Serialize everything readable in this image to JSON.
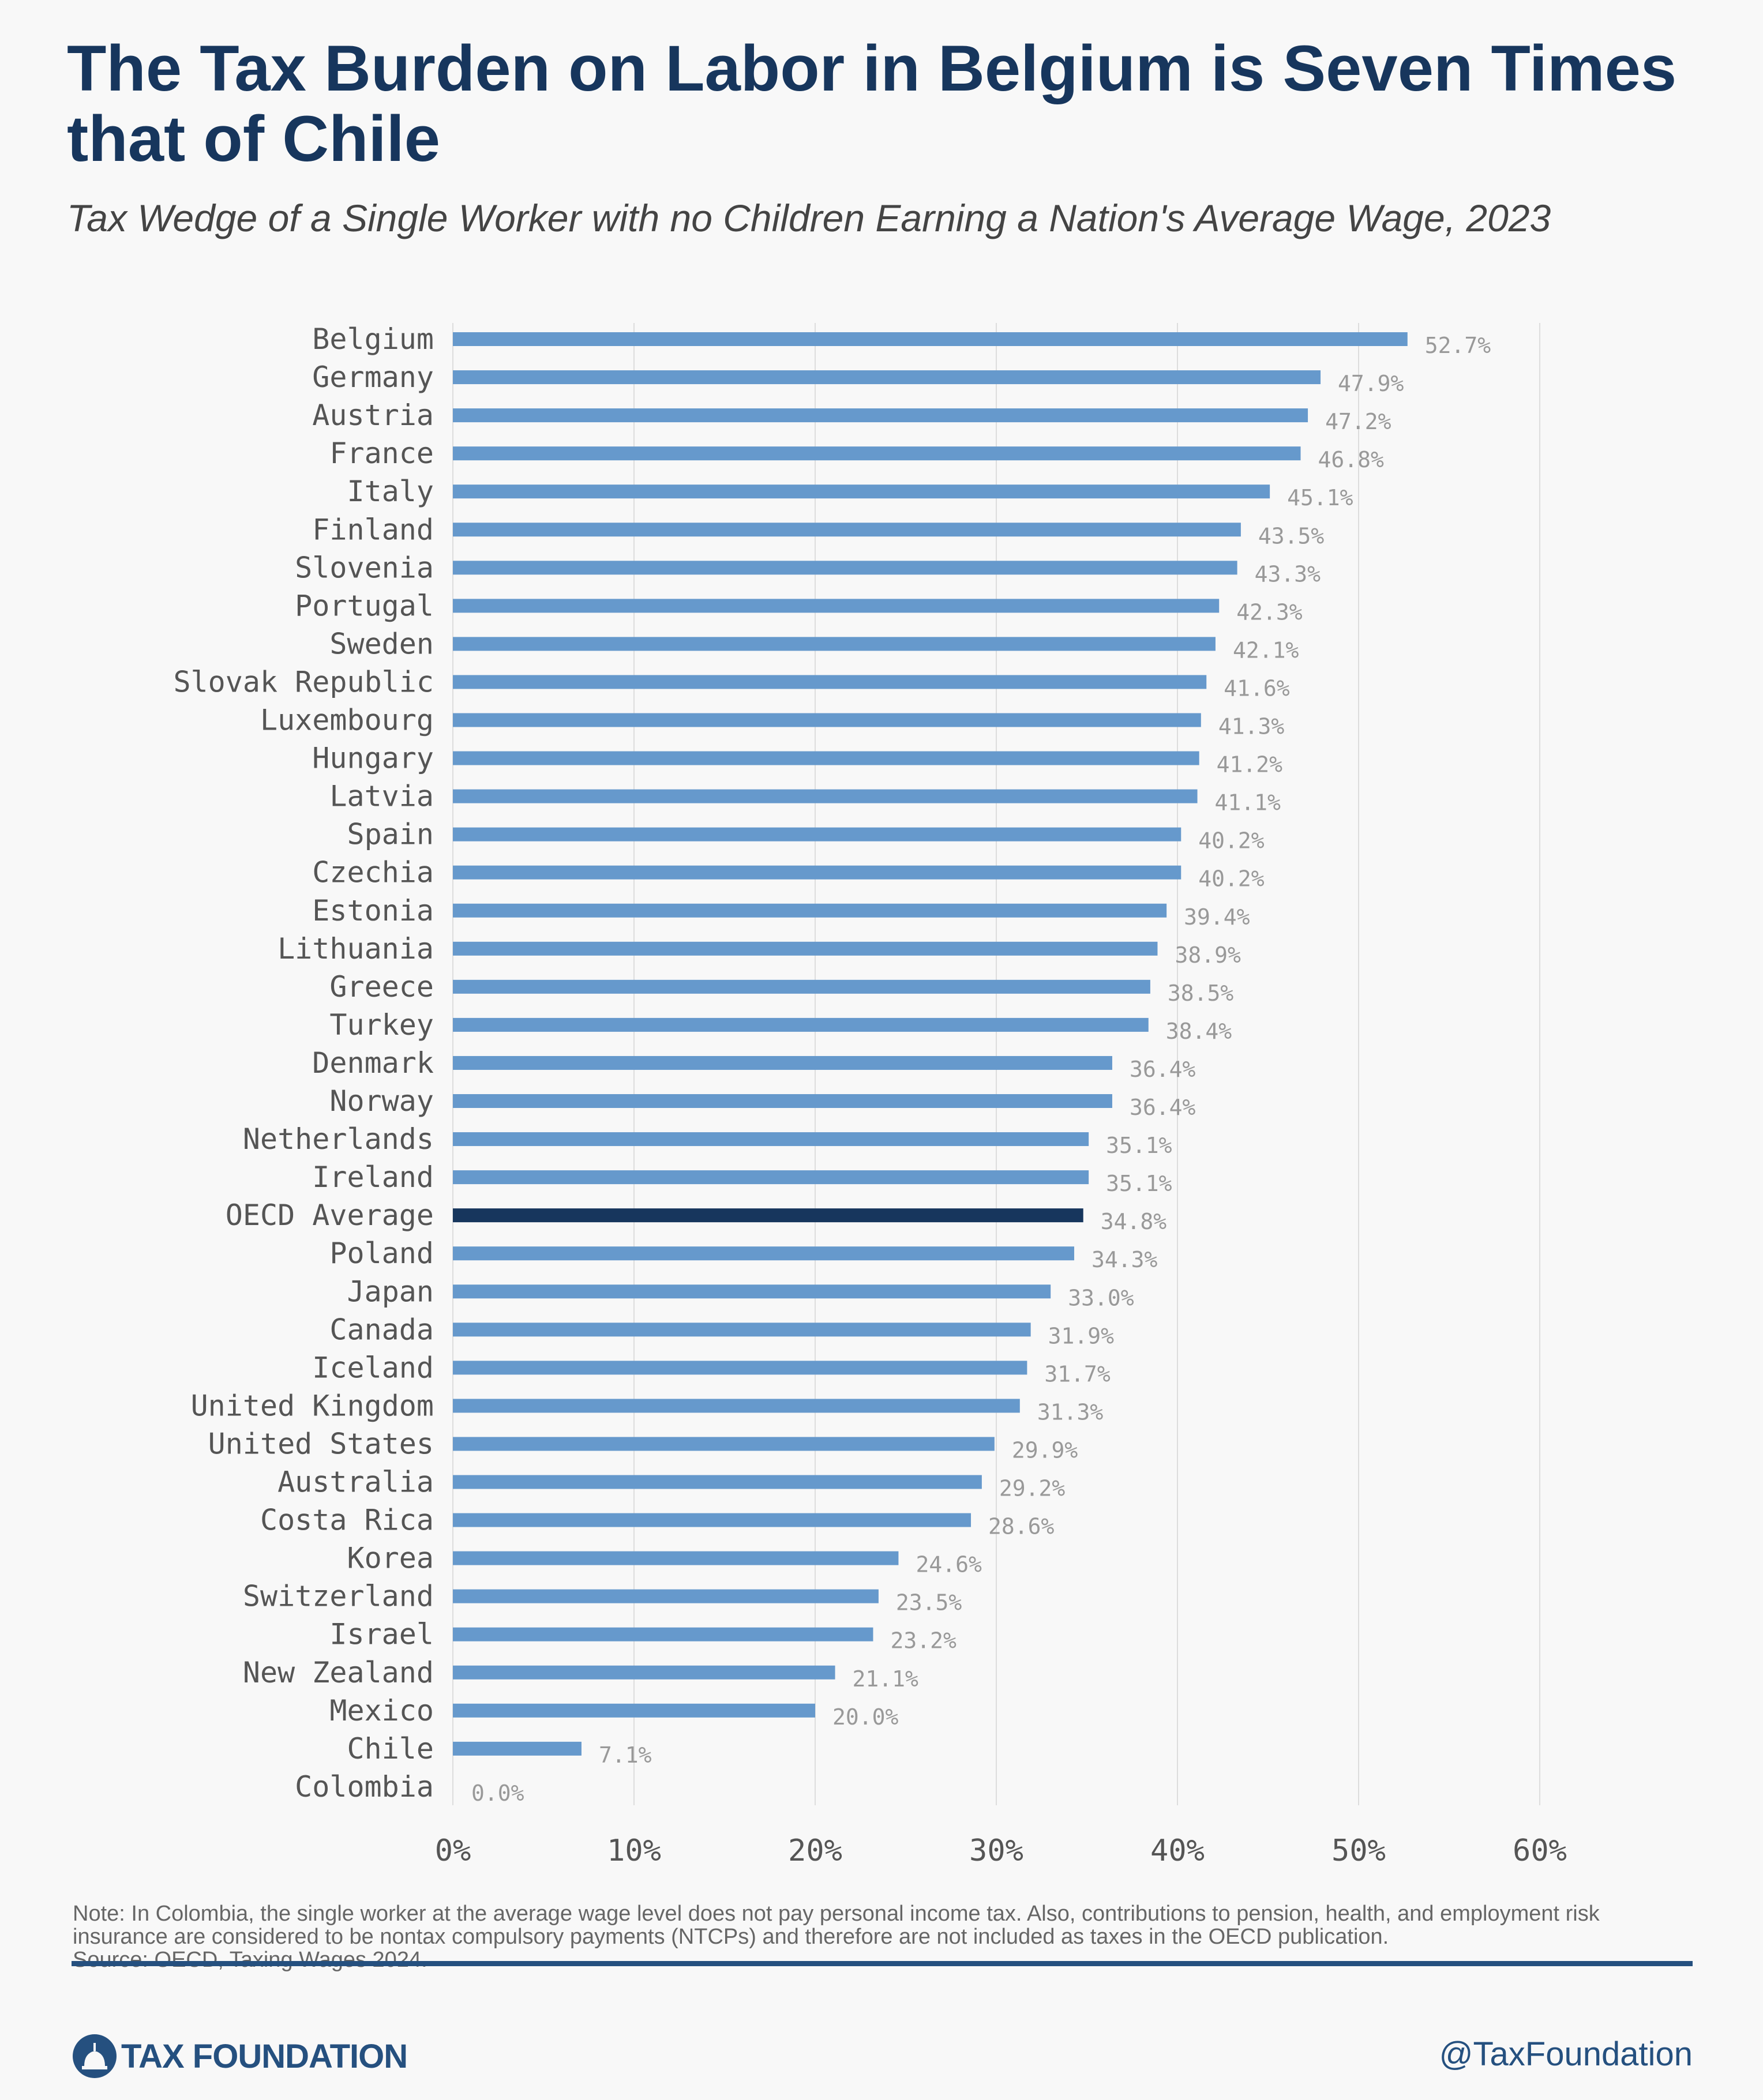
{
  "header": {
    "title": "The Tax Burden on Labor in Belgium is Seven Times that of Chile",
    "subtitle": "Tax Wedge of a Single Worker with no Children Earning a Nation's Average Wage, 2023"
  },
  "chart_data": {
    "type": "bar",
    "orientation": "horizontal",
    "categories": [
      "Belgium",
      "Germany",
      "Austria",
      "France",
      "Italy",
      "Finland",
      "Slovenia",
      "Portugal",
      "Sweden",
      "Slovak Republic",
      "Luxembourg",
      "Hungary",
      "Latvia",
      "Spain",
      "Czechia",
      "Estonia",
      "Lithuania",
      "Greece",
      "Turkey",
      "Denmark",
      "Norway",
      "Netherlands",
      "Ireland",
      "OECD Average",
      "Poland",
      "Japan",
      "Canada",
      "Iceland",
      "United Kingdom",
      "United States",
      "Australia",
      "Costa Rica",
      "Korea",
      "Switzerland",
      "Israel",
      "New Zealand",
      "Mexico",
      "Chile",
      "Colombia"
    ],
    "values": [
      52.7,
      47.9,
      47.2,
      46.8,
      45.1,
      43.5,
      43.3,
      42.3,
      42.1,
      41.6,
      41.3,
      41.2,
      41.1,
      40.2,
      40.2,
      39.4,
      38.9,
      38.5,
      38.4,
      36.4,
      36.4,
      35.1,
      35.1,
      34.8,
      34.3,
      33.0,
      31.9,
      31.7,
      31.3,
      29.9,
      29.2,
      28.6,
      24.6,
      23.5,
      23.2,
      21.1,
      20.0,
      7.1,
      0.0
    ],
    "value_labels": [
      "52.7%",
      "47.9%",
      "47.2%",
      "46.8%",
      "45.1%",
      "43.5%",
      "43.3%",
      "42.3%",
      "42.1%",
      "41.6%",
      "41.3%",
      "41.2%",
      "41.1%",
      "40.2%",
      "40.2%",
      "39.4%",
      "38.9%",
      "38.5%",
      "38.4%",
      "36.4%",
      "36.4%",
      "35.1%",
      "35.1%",
      "34.8%",
      "34.3%",
      "33.0%",
      "31.9%",
      "31.7%",
      "31.3%",
      "29.9%",
      "29.2%",
      "28.6%",
      "24.6%",
      "23.5%",
      "23.2%",
      "21.1%",
      "20.0%",
      "7.1%",
      "0.0%"
    ],
    "highlight": "OECD Average",
    "xlim": [
      0,
      60
    ],
    "x_ticks": [
      "0%",
      "10%",
      "20%",
      "30%",
      "40%",
      "50%",
      "60%"
    ],
    "grid": true,
    "colors": {
      "bar": "#6699cc",
      "highlight": "#17365d",
      "grid": "#dddddd",
      "value_label": "#999999",
      "category_label": "#555555"
    }
  },
  "footer": {
    "note": "Note: In Colombia, the single worker at the average wage level does not pay personal income tax. Also, contributions to pension, health, and employment risk insurance are considered to be nontax compulsory payments (NTCPs) and therefore are not included as taxes in the OECD publication.",
    "source": "Source: OECD, Taxing Wages 2024.",
    "logo": "TAX FOUNDATION",
    "handle": "@TaxFoundation"
  }
}
